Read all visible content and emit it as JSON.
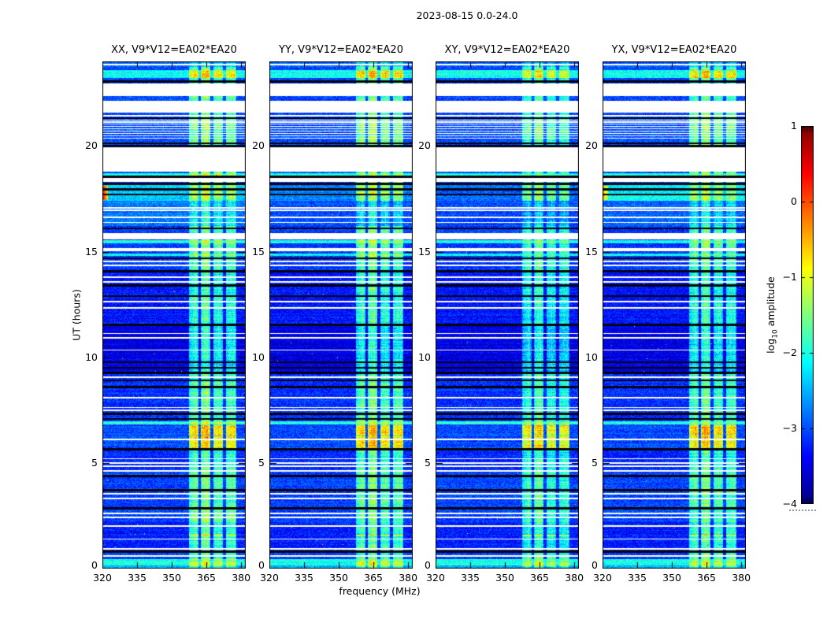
{
  "figure": {
    "title": "2023-08-15 0.0-24.0",
    "xlabel": "frequency (MHz)",
    "ylabel": "UT (hours)",
    "background": "#ffffff"
  },
  "chart_data": {
    "type": "heatmap",
    "colormap": "jet",
    "x_range": [
      320,
      382
    ],
    "x_ticks": [
      320,
      335,
      350,
      365,
      380
    ],
    "x_tick_labels": [
      "320",
      "335",
      "350",
      "365",
      "380"
    ],
    "y_range": [
      0,
      24
    ],
    "y_ticks": [
      0,
      5,
      10,
      15,
      20
    ],
    "y_tick_labels": [
      "0",
      "5",
      "10",
      "15",
      "20"
    ],
    "colorbar": {
      "label": "log10 amplitude",
      "label_parts": [
        "log",
        "10",
        " amplitude"
      ],
      "range": [
        -4,
        1
      ],
      "ticks": [
        1,
        0,
        -1,
        -2,
        -3,
        -4
      ],
      "tick_labels": [
        "1",
        "0",
        "−1",
        "−2",
        "−3",
        "−4"
      ]
    },
    "panels": [
      {
        "title": "XX, V9*V12=EA02*EA20",
        "seed": 1,
        "band_offset": 0
      },
      {
        "title": "YY, V9*V12=EA02*EA20",
        "seed": 2,
        "band_offset": 0
      },
      {
        "title": "XY, V9*V12=EA02*EA20",
        "seed": 3,
        "band_offset": -0.2
      },
      {
        "title": "YX, V9*V12=EA02*EA20",
        "seed": 4,
        "band_offset": -0.05
      }
    ],
    "features": {
      "band": {
        "range": [
          357.3,
          378.2
        ],
        "subbands": [
          [
            357.4,
            361.7
          ],
          [
            362.7,
            366.8
          ],
          [
            368.0,
            372.2
          ],
          [
            373.4,
            377.9
          ]
        ],
        "subband_bonus": [
          0.08,
          0.18,
          0.0,
          0.05
        ],
        "boost": 1.15
      },
      "white_gaps": [
        [
          22.36,
          22.94
        ],
        [
          21.56,
          22.12
        ],
        [
          18.78,
          19.94
        ],
        [
          18.28,
          18.5
        ],
        [
          15.58,
          15.86
        ],
        [
          15.02,
          15.18
        ]
      ],
      "stripes": {
        "ut": [
          20.28,
          21.26
        ],
        "count": 9,
        "duty": 0.62
      },
      "white_lines": [
        23.84,
        21.44,
        17.06,
        16.97,
        16.62,
        16.38,
        14.52,
        14.34,
        13.78,
        13.56,
        12.62,
        12.34,
        11.12,
        10.92,
        10.34,
        9.06,
        8.1,
        7.62,
        7.5,
        6.12,
        5.2,
        4.98,
        4.85,
        4.62,
        3.55,
        3.32,
        2.62,
        2.42,
        2.02,
        1.4,
        0.92,
        0.6
      ],
      "black_lines": [
        23.05,
        21.32,
        20.12,
        20.0,
        18.55,
        18.2,
        17.94,
        17.7,
        16.1,
        14.68,
        14.06,
        13.4,
        12.9,
        11.54,
        9.76,
        9.5,
        9.26,
        8.9,
        8.6,
        7.32,
        7.08,
        5.64,
        4.38,
        3.7,
        2.86,
        0.8
      ],
      "bright_rows": [
        {
          "ut": [
            23.75,
            24.0
          ],
          "level": -2.9
        },
        {
          "ut": [
            23.2,
            23.58
          ],
          "level": -2.05
        },
        {
          "ut": [
            18.6,
            18.72
          ],
          "level": -2.0
        },
        {
          "ut": [
            17.42,
            18.16
          ],
          "levels": [
            -2.35,
            -2.75,
            -2.85,
            -2.15
          ]
        },
        {
          "ut": [
            16.2,
            17.42
          ],
          "levels": [
            -2.78,
            -3.0,
            -3.05,
            -2.9
          ]
        },
        {
          "ut": [
            15.4,
            15.54
          ],
          "level": -2.0
        },
        {
          "ut": [
            14.78,
            14.9
          ],
          "level": -2.1
        },
        {
          "ut": [
            6.82,
            6.98
          ],
          "level": -1.95
        },
        {
          "ut": [
            0.14,
            0.44
          ],
          "level": -2.0
        },
        {
          "ut": [
            0.0,
            0.14
          ],
          "level": -2.5
        }
      ],
      "band_blocks": [
        {
          "ut": [
            23.22,
            23.56
          ],
          "level": -0.95
        },
        {
          "ut": [
            20.3,
            21.26
          ],
          "level": -1.75
        },
        {
          "ut": [
            17.42,
            18.16
          ],
          "level": -1.6
        },
        {
          "ut": [
            6.28,
            6.78
          ],
          "level": -0.85
        },
        {
          "ut": [
            5.7,
            6.26
          ],
          "level": -1.0
        },
        {
          "ut": [
            1.54,
            1.62
          ],
          "level": -1.15
        },
        {
          "ut": [
            0.12,
            0.3
          ],
          "level": -1.3
        }
      ],
      "background_segments": [
        [
          0,
          0.8,
          -3.1
        ],
        [
          0.8,
          2.2,
          -3.25
        ],
        [
          2.2,
          4.6,
          -3.05
        ],
        [
          4.6,
          5.7,
          -3.2
        ],
        [
          5.7,
          6.8,
          -3.0
        ],
        [
          6.8,
          9.3,
          -3.15
        ],
        [
          9.3,
          11.5,
          -3.5
        ],
        [
          11.5,
          14.0,
          -3.3
        ],
        [
          14.0,
          16.2,
          -3.1
        ],
        [
          16.2,
          20.3,
          -3.0
        ],
        [
          20.3,
          21.3,
          -3.0
        ],
        [
          21.3,
          24.0,
          -3.05
        ]
      ],
      "left_hot": {
        "ut": [
          17.44,
          18.12
        ],
        "f_max": 322.5,
        "levels": [
          0.45,
          null,
          null,
          -0.25
        ]
      }
    }
  }
}
